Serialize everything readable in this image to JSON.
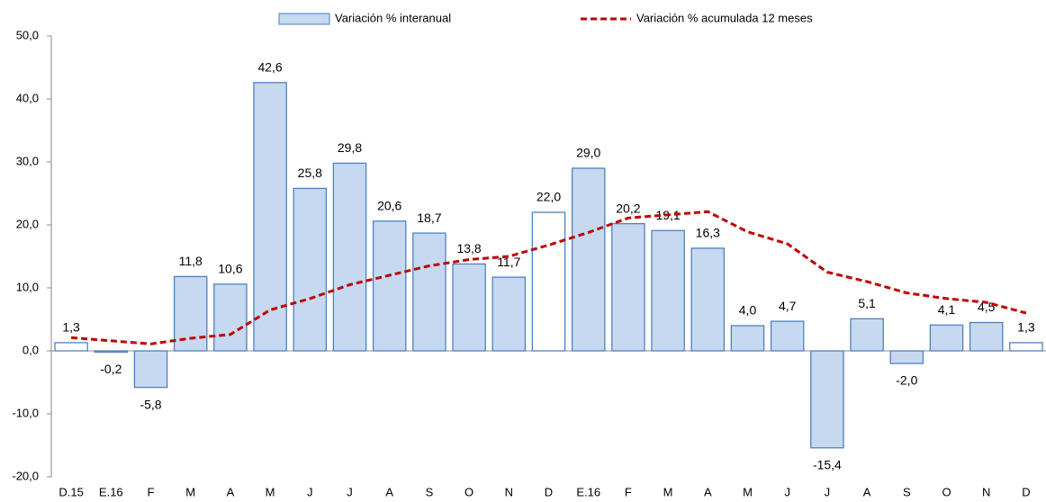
{
  "chart_data": {
    "type": "bar",
    "categories": [
      "D.15",
      "E.16",
      "F",
      "M",
      "A",
      "M",
      "J",
      "J",
      "A",
      "S",
      "O",
      "N",
      "D",
      "E.16",
      "F",
      "M",
      "A",
      "M",
      "J",
      "J",
      "A",
      "S",
      "O",
      "N",
      "D"
    ],
    "series": [
      {
        "name": "Variación % interanual",
        "type": "bar",
        "color": "#c6d9f1",
        "edge_color": "#4f81bd",
        "bar_colors": [
          "#ffffff",
          "#c6d9f1",
          "#c6d9f1",
          "#c6d9f1",
          "#c6d9f1",
          "#c6d9f1",
          "#c6d9f1",
          "#c6d9f1",
          "#c6d9f1",
          "#c6d9f1",
          "#c6d9f1",
          "#c6d9f1",
          "#ffffff",
          "#c6d9f1",
          "#c6d9f1",
          "#c6d9f1",
          "#c6d9f1",
          "#c6d9f1",
          "#c6d9f1",
          "#c6d9f1",
          "#c6d9f1",
          "#c6d9f1",
          "#c6d9f1",
          "#c6d9f1",
          "#ffffff"
        ],
        "values": [
          1.3,
          -0.2,
          -5.8,
          11.8,
          10.6,
          42.6,
          25.8,
          29.8,
          20.6,
          18.7,
          13.8,
          11.7,
          22.0,
          29.0,
          20.2,
          19.1,
          16.3,
          4.0,
          4.7,
          -15.4,
          5.1,
          -2.0,
          4.1,
          4.5,
          1.3
        ],
        "value_labels": [
          "1,3",
          "-0,2",
          "-5,8",
          "11,8",
          "10,6",
          "42,6",
          "25,8",
          "29,8",
          "20,6",
          "18,7",
          "13,8",
          "11,7",
          "22,0",
          "29,0",
          "20,2",
          "19,1",
          "16,3",
          "4,0",
          "4,7",
          "-15,4",
          "5,1",
          "-2,0",
          "4,1",
          "4,5",
          "1,3"
        ]
      },
      {
        "name": "Variación % acumulada 12 meses",
        "type": "line",
        "color": "#c00000",
        "dashed": true,
        "values": [
          2.1,
          1.6,
          1.1,
          2.0,
          2.6,
          6.5,
          8.3,
          10.5,
          12.0,
          13.5,
          14.5,
          15.0,
          16.8,
          18.8,
          21.1,
          21.6,
          22.1,
          18.9,
          17.0,
          12.5,
          11.0,
          9.2,
          8.3,
          7.7,
          6.0
        ]
      }
    ],
    "ylim": [
      -20,
      50
    ],
    "yticks": [
      {
        "value": -20,
        "label": "-20,0"
      },
      {
        "value": -10,
        "label": "-10,0"
      },
      {
        "value": 0,
        "label": "0,0"
      },
      {
        "value": 10,
        "label": "10,0"
      },
      {
        "value": 20,
        "label": "20,0"
      },
      {
        "value": 30,
        "label": "30,0"
      },
      {
        "value": 40,
        "label": "40,0"
      },
      {
        "value": 50,
        "label": "50,0"
      }
    ],
    "grid": false,
    "legend": "top"
  }
}
